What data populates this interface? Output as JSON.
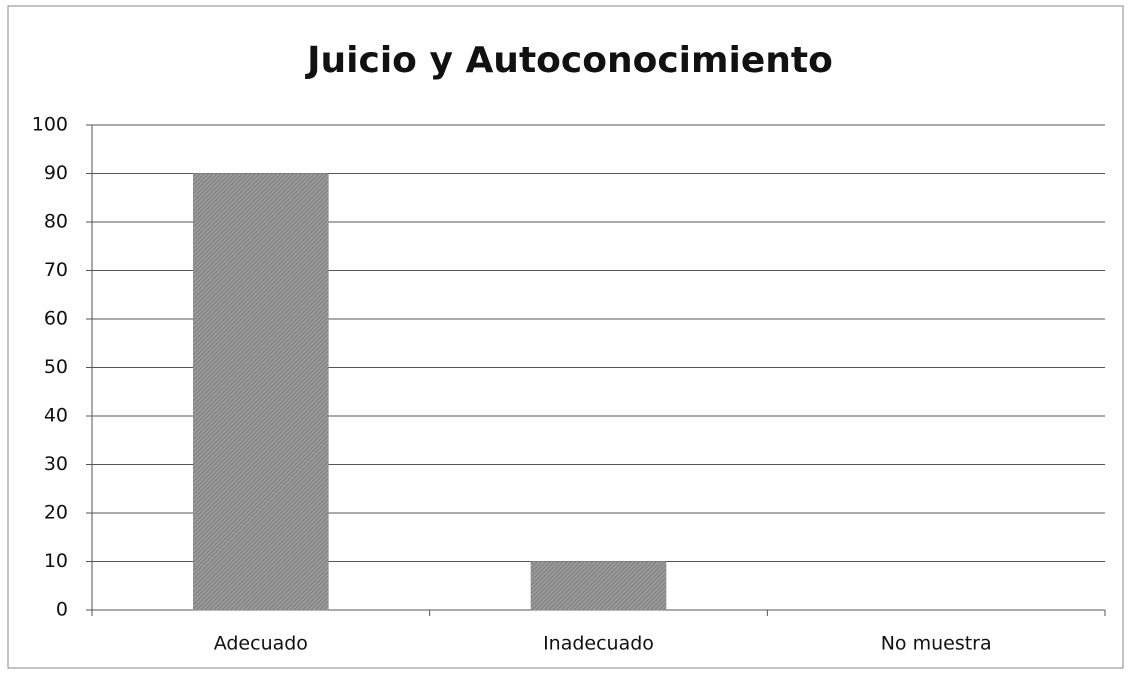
{
  "chart_data": {
    "type": "bar",
    "title": "Juicio y Autoconocimiento",
    "categories": [
      "Adecuado",
      "Inadecuado",
      "No muestra"
    ],
    "values": [
      90,
      10,
      0
    ],
    "color": "#8a8a8a",
    "ylim": [
      0,
      100
    ],
    "yticks": [
      0,
      10,
      20,
      30,
      40,
      50,
      60,
      70,
      80,
      90,
      100
    ],
    "grid": true
  }
}
